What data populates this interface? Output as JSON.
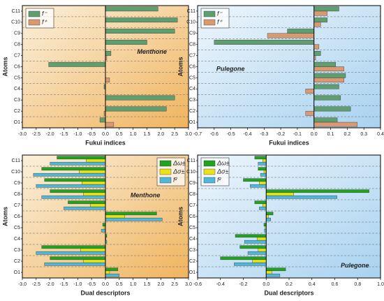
{
  "chart_data": [
    {
      "type": "bar",
      "orientation": "horizontal",
      "annotation": "Menthone",
      "xlabel": "Fukui indices",
      "ylabel": "Atoms",
      "legend": "upper left",
      "categories": [
        "O1",
        "C2",
        "C3",
        "C4",
        "C5",
        "C6",
        "C7",
        "C8",
        "C9",
        "C10",
        "C11"
      ],
      "series": [
        {
          "name": "f⁻",
          "color": "#5f9e6e",
          "values": [
            -0.2,
            2.2,
            2.5,
            -0.05,
            0.0,
            -2.05,
            0.2,
            1.5,
            2.5,
            2.6,
            1.9
          ]
        },
        {
          "name": "f⁺",
          "color": "#d99a72",
          "values": [
            0.3,
            -0.05,
            0.0,
            0.0,
            0.15,
            0.0,
            0.05,
            0.0,
            0.0,
            0.0,
            0.0
          ]
        }
      ],
      "xlim": [
        -3.0,
        3.0
      ],
      "xticks": [
        {
          "value": -3,
          "label": "-3.0"
        },
        {
          "value": -2.5,
          "label": "-2.5"
        },
        {
          "value": -2,
          "label": "-2.0"
        },
        {
          "value": -1.5,
          "label": "-1.5"
        },
        {
          "value": -1,
          "label": "-1.0"
        },
        {
          "value": -0.5,
          "label": "-0.5"
        },
        {
          "value": 0,
          "label": "0.0"
        },
        {
          "value": 0.5,
          "label": "0.5"
        },
        {
          "value": 1,
          "label": "1.0"
        },
        {
          "value": 1.5,
          "label": "1.5"
        },
        {
          "value": 2,
          "label": "2.0"
        },
        {
          "value": 2.5,
          "label": "2.5"
        },
        {
          "value": 3,
          "label": "3.0"
        }
      ]
    },
    {
      "type": "bar",
      "orientation": "horizontal",
      "annotation": "Pulegone",
      "xlabel": "Fukui indices",
      "ylabel": "Atoms",
      "legend": "upper left",
      "categories": [
        "O1",
        "C2",
        "C3",
        "C4",
        "C5",
        "C6",
        "C7",
        "C8",
        "C9",
        "C10",
        "C11"
      ],
      "series": [
        {
          "name": "f⁻",
          "color": "#5f9e6e",
          "values": [
            0.14,
            0.22,
            0.16,
            0.15,
            0.19,
            0.13,
            0.04,
            -0.6,
            -0.16,
            0.08,
            0.15
          ]
        },
        {
          "name": "f⁺",
          "color": "#d99a72",
          "values": [
            0.26,
            -0.05,
            0.0,
            -0.05,
            0.18,
            0.18,
            0.01,
            0.03,
            -0.28,
            0.04,
            0.08
          ]
        }
      ],
      "xlim": [
        -0.7,
        0.4
      ],
      "xticks": [
        {
          "value": -0.7,
          "label": "-0.7"
        },
        {
          "value": -0.6,
          "label": "-0.6"
        },
        {
          "value": -0.5,
          "label": "-0.5"
        },
        {
          "value": -0.4,
          "label": "-0.4"
        },
        {
          "value": -0.3,
          "label": "-0.3"
        },
        {
          "value": -0.2,
          "label": "-0.2"
        },
        {
          "value": -0.1,
          "label": "-0.1"
        },
        {
          "value": 0,
          "label": "0.0"
        },
        0.1,
        0.2,
        0.3,
        0.4
      ]
    },
    {
      "type": "bar",
      "orientation": "horizontal",
      "annotation": "Menthone",
      "xlabel": "Dual descriptors",
      "ylabel": "Atoms",
      "legend": "upper right",
      "categories": [
        "O1",
        "C2",
        "C3",
        "C4",
        "C5",
        "C6",
        "C7",
        "C8",
        "C9",
        "C10",
        "C11"
      ],
      "series": [
        {
          "name": "Δω±",
          "color": "#22a31f",
          "values": [
            0.45,
            -2.0,
            -2.3,
            0.05,
            -0.1,
            1.85,
            -1.35,
            -2.0,
            -2.2,
            -2.3,
            -1.75
          ]
        },
        {
          "name": "Δσ±",
          "color": "#e8e21a",
          "values": [
            0.15,
            -0.8,
            -0.9,
            0.02,
            -0.05,
            0.7,
            -0.55,
            -0.8,
            -0.85,
            -0.95,
            -0.7
          ]
        },
        {
          "name": "f²",
          "color": "#4fb8d8",
          "values": [
            0.5,
            -2.2,
            -2.5,
            0.05,
            -0.15,
            2.05,
            -1.5,
            -2.3,
            -2.5,
            -2.6,
            -2.0
          ]
        }
      ],
      "xlim": [
        -3.0,
        3.0
      ],
      "xticks": [
        {
          "value": -3,
          "label": "-3.0"
        },
        {
          "value": -2.5,
          "label": "-2.5"
        },
        {
          "value": -2,
          "label": "-2.0"
        },
        {
          "value": -1.5,
          "label": "-1.5"
        },
        {
          "value": -1,
          "label": "-1.0"
        },
        {
          "value": -0.5,
          "label": "-0.5"
        },
        {
          "value": 0,
          "label": "0.0"
        },
        {
          "value": 0.5,
          "label": "0.5"
        },
        {
          "value": 1,
          "label": "1.0"
        },
        {
          "value": 1.5,
          "label": "1.5"
        },
        {
          "value": 2,
          "label": "2.0"
        },
        {
          "value": 2.5,
          "label": "2.5"
        },
        {
          "value": 3,
          "label": "3.0"
        }
      ]
    },
    {
      "type": "bar",
      "orientation": "horizontal",
      "annotation": "Pulegone",
      "xlabel": "Dual descriptors",
      "ylabel": "Atoms",
      "legend": "upper left",
      "categories": [
        "O1",
        "C2",
        "C3",
        "C4",
        "C5",
        "C6",
        "C7",
        "C8",
        "C9",
        "C10",
        "C11"
      ],
      "series": [
        {
          "name": "Δω±",
          "color": "#22a31f",
          "values": [
            0.17,
            -0.4,
            -0.23,
            -0.27,
            -0.02,
            0.06,
            -0.1,
            0.9,
            -0.2,
            -0.07,
            -0.1
          ]
        },
        {
          "name": "Δσ±",
          "color": "#e8e21a",
          "values": [
            0.05,
            -0.12,
            -0.07,
            -0.08,
            -0.01,
            0.02,
            -0.03,
            0.24,
            -0.06,
            -0.02,
            -0.03
          ]
        },
        {
          "name": "f²",
          "color": "#4fb8d8",
          "values": [
            0.12,
            -0.28,
            -0.16,
            -0.19,
            -0.015,
            0.04,
            -0.06,
            0.62,
            -0.14,
            -0.05,
            -0.07
          ]
        }
      ],
      "xlim": [
        -0.6,
        1.0
      ],
      "xticks": [
        {
          "value": -0.6,
          "label": "-0.6"
        },
        {
          "value": -0.4,
          "label": "-0.4"
        },
        {
          "value": -0.2,
          "label": "-0.2"
        },
        {
          "value": 0,
          "label": "0.0"
        },
        0.2,
        0.4,
        0.6,
        0.8,
        {
          "value": 1,
          "label": "1.0"
        }
      ]
    }
  ]
}
